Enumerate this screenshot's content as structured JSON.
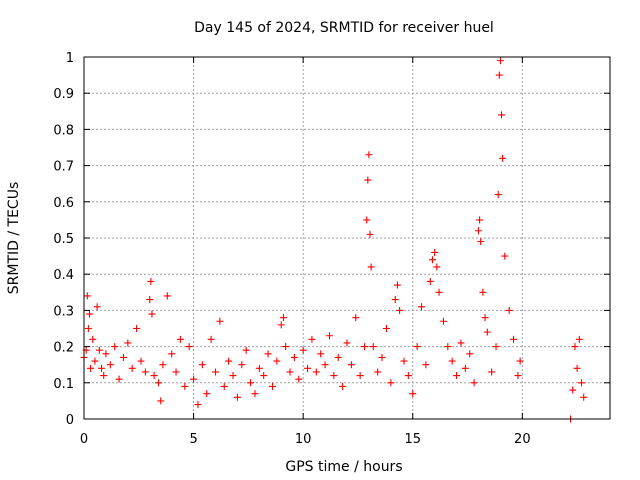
{
  "chart_data": {
    "type": "scatter",
    "title": "Day 145 of 2024, SRMTID for receiver huel",
    "xlabel": "GPS time / hours",
    "ylabel": "SRMTID / TECUs",
    "xlim": [
      0,
      24
    ],
    "ylim": [
      0,
      1
    ],
    "x_ticks": [
      0,
      5,
      10,
      15,
      20
    ],
    "x_tick_labels": [
      "0",
      "5",
      "10",
      "15",
      "20"
    ],
    "y_ticks": [
      0,
      0.1,
      0.2,
      0.3,
      0.4,
      0.5,
      0.6,
      0.7,
      0.8,
      0.9,
      1
    ],
    "y_tick_labels": [
      "0",
      "0.1",
      "0.2",
      "0.3",
      "0.4",
      "0.5",
      "0.6",
      "0.7",
      "0.8",
      "0.9",
      "1"
    ],
    "grid": true,
    "marker": "+",
    "color": "#ff0000",
    "series": [
      {
        "name": "SRMTID",
        "x": [
          0.0,
          0.1,
          0.15,
          0.2,
          0.25,
          0.3,
          0.4,
          0.5,
          0.6,
          0.7,
          0.8,
          0.9,
          1.0,
          1.2,
          1.4,
          1.6,
          1.8,
          2.0,
          2.2,
          2.4,
          2.6,
          2.8,
          3.0,
          3.05,
          3.1,
          3.2,
          3.4,
          3.5,
          3.6,
          3.8,
          4.0,
          4.2,
          4.4,
          4.6,
          4.8,
          5.0,
          5.2,
          5.4,
          5.6,
          5.8,
          6.0,
          6.2,
          6.4,
          6.6,
          6.8,
          7.0,
          7.2,
          7.4,
          7.6,
          7.8,
          8.0,
          8.2,
          8.4,
          8.6,
          8.8,
          9.0,
          9.1,
          9.2,
          9.4,
          9.6,
          9.8,
          10.0,
          10.2,
          10.4,
          10.6,
          10.8,
          11.0,
          11.2,
          11.4,
          11.6,
          11.8,
          12.0,
          12.2,
          12.4,
          12.6,
          12.8,
          12.9,
          12.95,
          13.0,
          13.05,
          13.1,
          13.2,
          13.4,
          13.6,
          13.8,
          14.0,
          14.2,
          14.3,
          14.4,
          14.6,
          14.8,
          15.0,
          15.2,
          15.4,
          15.6,
          15.8,
          15.9,
          16.0,
          16.1,
          16.2,
          16.4,
          16.6,
          16.8,
          17.0,
          17.2,
          17.4,
          17.6,
          17.8,
          18.0,
          18.05,
          18.1,
          18.2,
          18.3,
          18.4,
          18.6,
          18.8,
          18.9,
          18.95,
          19.0,
          19.05,
          19.1,
          19.2,
          19.4,
          19.6,
          19.8,
          19.9,
          22.2,
          22.3,
          22.4,
          22.5,
          22.6,
          22.7,
          22.8
        ],
        "y": [
          0.17,
          0.19,
          0.34,
          0.25,
          0.29,
          0.14,
          0.22,
          0.16,
          0.31,
          0.19,
          0.14,
          0.12,
          0.18,
          0.15,
          0.2,
          0.11,
          0.17,
          0.21,
          0.14,
          0.25,
          0.16,
          0.13,
          0.33,
          0.38,
          0.29,
          0.12,
          0.1,
          0.05,
          0.15,
          0.34,
          0.18,
          0.13,
          0.22,
          0.09,
          0.2,
          0.11,
          0.04,
          0.15,
          0.07,
          0.22,
          0.13,
          0.27,
          0.09,
          0.16,
          0.12,
          0.06,
          0.15,
          0.19,
          0.1,
          0.07,
          0.14,
          0.12,
          0.18,
          0.09,
          0.16,
          0.26,
          0.28,
          0.2,
          0.13,
          0.17,
          0.11,
          0.19,
          0.14,
          0.22,
          0.13,
          0.18,
          0.15,
          0.23,
          0.12,
          0.17,
          0.09,
          0.21,
          0.15,
          0.28,
          0.12,
          0.2,
          0.55,
          0.66,
          0.73,
          0.51,
          0.42,
          0.2,
          0.13,
          0.17,
          0.25,
          0.1,
          0.33,
          0.37,
          0.3,
          0.16,
          0.12,
          0.07,
          0.2,
          0.31,
          0.15,
          0.38,
          0.44,
          0.46,
          0.42,
          0.35,
          0.27,
          0.2,
          0.16,
          0.12,
          0.21,
          0.14,
          0.18,
          0.1,
          0.52,
          0.55,
          0.49,
          0.35,
          0.28,
          0.24,
          0.13,
          0.2,
          0.62,
          0.95,
          0.99,
          0.84,
          0.72,
          0.45,
          0.3,
          0.22,
          0.12,
          0.16,
          0.0,
          0.08,
          0.2,
          0.14,
          0.22,
          0.1,
          0.06
        ]
      }
    ]
  }
}
